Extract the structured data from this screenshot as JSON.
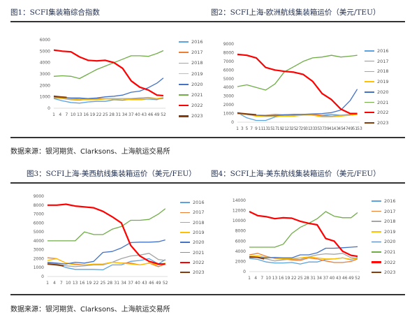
{
  "source_label": "数据来源：银河期货、Clarksons、上海航运交易所",
  "legend_years": [
    "2016",
    "2017",
    "2018",
    "2019",
    "2020",
    "2021",
    "2022",
    "2023"
  ],
  "colors": {
    "2016": "#5ba3e0",
    "2017": "#ed7d31",
    "2018": "#a5a5a5",
    "2019": "#ffc000",
    "2020": "#4472c4",
    "2021": "#70ad47",
    "2022": "#ff0000",
    "2023": "#843c0c"
  },
  "chart_data": [
    {
      "type": "line",
      "title": "图1：SCFI集装箱综合指数",
      "ylim": [
        0,
        6000
      ],
      "yticks": [
        0,
        1000,
        2000,
        3000,
        4000,
        5000,
        6000
      ],
      "xticks": [
        1,
        4,
        7,
        10,
        13,
        16,
        19,
        22,
        25,
        28,
        31,
        34,
        37,
        40,
        43,
        46,
        49,
        52
      ],
      "xlim": [
        1,
        53
      ],
      "legend": "right",
      "x": [
        1,
        5,
        9,
        13,
        17,
        21,
        25,
        29,
        33,
        37,
        41,
        45,
        49,
        52
      ],
      "series": [
        {
          "name": "2016",
          "values": [
            850,
            650,
            500,
            450,
            550,
            600,
            600,
            750,
            700,
            800,
            750,
            800,
            750,
            950
          ]
        },
        {
          "name": "2017",
          "values": [
            1000,
            950,
            850,
            800,
            850,
            850,
            850,
            850,
            850,
            800,
            800,
            850,
            800,
            850
          ]
        },
        {
          "name": "2018",
          "values": [
            900,
            850,
            750,
            700,
            800,
            800,
            850,
            850,
            850,
            850,
            900,
            950,
            850,
            900
          ]
        },
        {
          "name": "2019",
          "values": [
            950,
            900,
            800,
            750,
            750,
            750,
            800,
            800,
            800,
            750,
            750,
            850,
            850,
            950
          ]
        },
        {
          "name": "2020",
          "values": [
            1000,
            950,
            900,
            900,
            850,
            900,
            1000,
            1050,
            1150,
            1400,
            1500,
            1800,
            2200,
            2650
          ]
        },
        {
          "name": "2021",
          "values": [
            2800,
            2850,
            2800,
            2600,
            3000,
            3400,
            3700,
            4000,
            4300,
            4600,
            4600,
            4550,
            4800,
            5050
          ]
        },
        {
          "name": "2022",
          "values": [
            5100,
            5000,
            4950,
            4500,
            4200,
            4150,
            4200,
            4000,
            3500,
            2400,
            1850,
            1600,
            1150,
            1100
          ]
        },
        {
          "name": "2023",
          "x": [
            1,
            4,
            7
          ],
          "values": [
            1050,
            1000,
            950
          ]
        }
      ]
    },
    {
      "type": "line",
      "title": "图2：SCFI上海-欧洲航线集装箱运价（美元/TEU）",
      "ylim": [
        0,
        9000
      ],
      "yticks": [
        0,
        1000,
        2000,
        3000,
        4000,
        5000,
        6000,
        7000,
        8000,
        9000
      ],
      "xticks": [
        1,
        3,
        5,
        7,
        9,
        11,
        13,
        15,
        17,
        19,
        21,
        23,
        25,
        27,
        29,
        31,
        33,
        35,
        37,
        39,
        41,
        43,
        45,
        47,
        49,
        51,
        53
      ],
      "xlim": [
        1,
        53
      ],
      "legend": "right",
      "x": [
        1,
        5,
        9,
        13,
        17,
        21,
        25,
        29,
        33,
        37,
        41,
        45,
        49,
        52
      ],
      "series": [
        {
          "name": "2016",
          "values": [
            1100,
            500,
            200,
            200,
            600,
            800,
            700,
            900,
            800,
            800,
            900,
            800,
            900,
            1000
          ]
        },
        {
          "name": "2017",
          "values": [
            1000,
            900,
            800,
            800,
            900,
            850,
            800,
            900,
            900,
            800,
            700,
            800,
            800,
            900
          ]
        },
        {
          "name": "2018",
          "values": [
            1000,
            900,
            800,
            800,
            800,
            850,
            850,
            850,
            800,
            700,
            700,
            800,
            800,
            900
          ]
        },
        {
          "name": "2019",
          "values": [
            950,
            900,
            700,
            650,
            700,
            700,
            700,
            800,
            800,
            600,
            600,
            700,
            800,
            900
          ]
        },
        {
          "name": "2020",
          "values": [
            1100,
            900,
            800,
            750,
            750,
            850,
            900,
            900,
            950,
            1000,
            1100,
            1400,
            2500,
            3800
          ]
        },
        {
          "name": "2021",
          "values": [
            4100,
            4300,
            4000,
            3700,
            4400,
            5800,
            6400,
            7000,
            7400,
            7500,
            7700,
            7500,
            7600,
            7700
          ]
        },
        {
          "name": "2022",
          "values": [
            7800,
            7700,
            7400,
            6300,
            6000,
            5850,
            5750,
            5500,
            4700,
            3300,
            2600,
            1500,
            1000,
            1000
          ]
        },
        {
          "name": "2023",
          "x": [
            1,
            5,
            9
          ],
          "values": [
            1050,
            950,
            850
          ]
        }
      ]
    },
    {
      "type": "line",
      "title": "图3：SCFI上海-美西航线集装箱运价（美元/FEU）",
      "ylim": [
        0,
        9000
      ],
      "yticks": [
        0,
        1000,
        2000,
        3000,
        4000,
        5000,
        6000,
        7000,
        8000,
        9000
      ],
      "xticks": [
        1,
        4,
        7,
        10,
        13,
        16,
        19,
        22,
        25,
        28,
        31,
        34,
        37,
        40,
        43,
        46,
        49,
        52
      ],
      "xlim": [
        1,
        53
      ],
      "legend": "right",
      "x": [
        1,
        5,
        9,
        13,
        17,
        21,
        25,
        29,
        33,
        37,
        41,
        45,
        49,
        52
      ],
      "series": [
        {
          "name": "2016",
          "values": [
            1500,
            1400,
            1000,
            800,
            800,
            800,
            750,
            1300,
            1300,
            1700,
            1800,
            2000,
            1400,
            1900
          ]
        },
        {
          "name": "2017",
          "values": [
            2100,
            2000,
            1500,
            1400,
            1300,
            1300,
            1400,
            1600,
            1500,
            1500,
            1300,
            1500,
            1100,
            1400
          ]
        },
        {
          "name": "2018",
          "values": [
            1500,
            1400,
            1200,
            1100,
            1200,
            1300,
            1300,
            1600,
            2000,
            2300,
            2400,
            2600,
            1900,
            1800
          ]
        },
        {
          "name": "2019",
          "values": [
            1800,
            2000,
            1500,
            1300,
            1300,
            1400,
            1400,
            1600,
            1500,
            1400,
            1300,
            1500,
            1300,
            1500
          ]
        },
        {
          "name": "2020",
          "values": [
            1600,
            1500,
            1400,
            1600,
            1500,
            1700,
            2700,
            2800,
            3200,
            3800,
            3850,
            3850,
            3900,
            4100
          ]
        },
        {
          "name": "2021",
          "values": [
            4000,
            4000,
            4000,
            4000,
            5000,
            4700,
            4700,
            5300,
            5600,
            6300,
            6300,
            6400,
            7000,
            7600
          ]
        },
        {
          "name": "2022",
          "values": [
            8000,
            8000,
            8100,
            7900,
            7800,
            7700,
            7300,
            6700,
            6000,
            3500,
            2300,
            1700,
            1400,
            1400
          ]
        },
        {
          "name": "2023",
          "x": [
            1,
            5,
            8
          ],
          "values": [
            1400,
            1300,
            1200
          ]
        }
      ]
    },
    {
      "type": "line",
      "title": "图4：SCFI上海-美东航线集装箱运价（美元/FEU）",
      "ylim": [
        0,
        14000
      ],
      "yticks": [
        0,
        2000,
        4000,
        6000,
        8000,
        10000,
        12000,
        14000
      ],
      "xticks": [
        1,
        4,
        7,
        10,
        13,
        16,
        19,
        22,
        25,
        28,
        31,
        34,
        37,
        40,
        43,
        46,
        49,
        52
      ],
      "xlim": [
        1,
        53
      ],
      "legend": "right",
      "x": [
        1,
        5,
        9,
        13,
        17,
        21,
        25,
        29,
        33,
        37,
        41,
        45,
        49,
        52
      ],
      "series": [
        {
          "name": "2016",
          "values": [
            2600,
            2400,
            1900,
            1700,
            1700,
            1800,
            1500,
            1900,
            1900,
            2400,
            2500,
            2700,
            2300,
            2800
          ]
        },
        {
          "name": "2017",
          "values": [
            3300,
            3600,
            3000,
            2600,
            2500,
            2300,
            2200,
            2700,
            2500,
            2100,
            1800,
            1800,
            2000,
            2500
          ]
        },
        {
          "name": "2018",
          "values": [
            2700,
            2800,
            2500,
            2100,
            2300,
            2500,
            2400,
            2900,
            3300,
            3500,
            3400,
            3600,
            2700,
            2600
          ]
        },
        {
          "name": "2019",
          "values": [
            3000,
            3100,
            2800,
            2700,
            2500,
            2600,
            2700,
            2900,
            2700,
            2500,
            2500,
            2700,
            2400,
            2600
          ]
        },
        {
          "name": "2020",
          "values": [
            2900,
            2800,
            2700,
            2800,
            2700,
            2700,
            3300,
            3300,
            3700,
            4600,
            4600,
            4700,
            4800,
            4900
          ]
        },
        {
          "name": "2021",
          "values": [
            4800,
            4800,
            4800,
            4800,
            5400,
            7500,
            8700,
            9500,
            10400,
            11800,
            10900,
            10600,
            10600,
            11600
          ]
        },
        {
          "name": "2022",
          "values": [
            11800,
            11000,
            10800,
            10400,
            10600,
            10500,
            9900,
            9500,
            9200,
            6500,
            6000,
            4000,
            3200,
            3000
          ]
        },
        {
          "name": "2023",
          "x": [
            1,
            5,
            8
          ],
          "values": [
            2900,
            2800,
            2500
          ]
        }
      ]
    }
  ]
}
